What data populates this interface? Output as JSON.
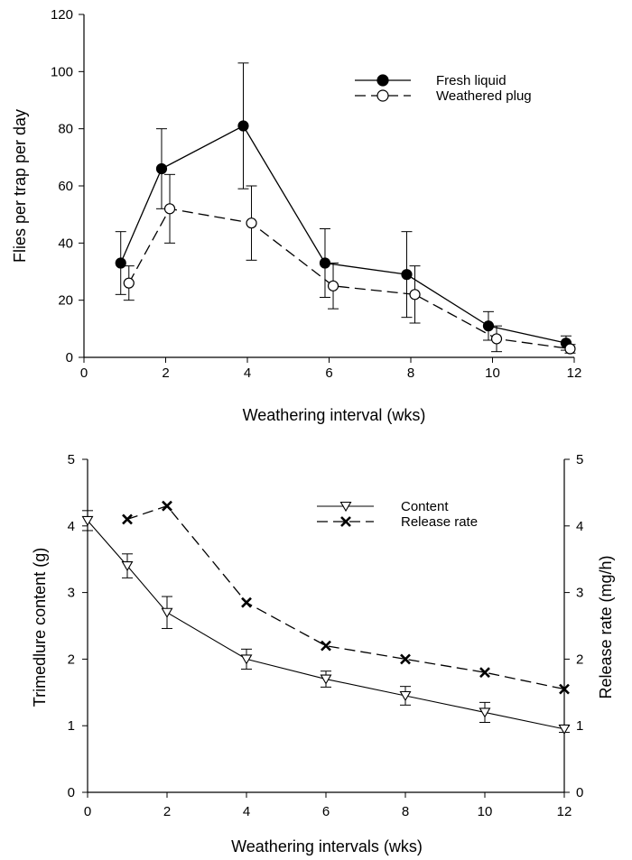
{
  "chart_data": [
    {
      "type": "line",
      "title": "",
      "xlabel": "Weathering interval (wks)",
      "ylabel": "Flies per trap per day",
      "xlim": [
        0,
        12
      ],
      "ylim": [
        0,
        120
      ],
      "xticks": [
        "0",
        "2",
        "4",
        "6",
        "8",
        "10",
        "12"
      ],
      "yticks": [
        "0",
        "20",
        "40",
        "60",
        "80",
        "100",
        "120"
      ],
      "legend_position": "top-right",
      "series": [
        {
          "name": "Fresh liquid",
          "marker": "filled-circle",
          "line_style": "solid",
          "x": [
            0.9,
            1.9,
            3.9,
            5.9,
            7.9,
            9.9,
            11.8
          ],
          "y": [
            33,
            66,
            81,
            33,
            29,
            11,
            5
          ],
          "error": [
            11,
            14,
            22,
            12,
            15,
            5,
            2.5
          ]
        },
        {
          "name": "Weathered plug",
          "marker": "open-circle",
          "line_style": "dashed",
          "x": [
            1.1,
            2.1,
            4.1,
            6.1,
            8.1,
            10.1,
            11.9
          ],
          "y": [
            26,
            52,
            47,
            25,
            22,
            6.5,
            3
          ],
          "error": [
            6,
            12,
            13,
            8,
            10,
            4.5,
            1.5
          ]
        }
      ]
    },
    {
      "type": "line",
      "title": "",
      "xlabel": "Weathering intervals (wks)",
      "ylabel": "Trimedlure content (g)",
      "y2label": "Release rate (mg/h)",
      "xlim": [
        0,
        12
      ],
      "ylim": [
        0,
        5
      ],
      "y2lim": [
        0,
        5
      ],
      "xticks": [
        "0",
        "2",
        "4",
        "6",
        "8",
        "10",
        "12"
      ],
      "yticks": [
        "0",
        "1",
        "2",
        "3",
        "4",
        "5"
      ],
      "y2ticks": [
        "0",
        "1",
        "2",
        "3",
        "4",
        "5"
      ],
      "legend_position": "top-center",
      "series": [
        {
          "name": "Content",
          "axis": "left",
          "marker": "open-down-triangle",
          "line_style": "solid",
          "x": [
            0,
            1,
            2,
            4,
            6,
            8,
            10,
            12
          ],
          "y": [
            4.08,
            3.4,
            2.7,
            2.0,
            1.7,
            1.45,
            1.2,
            0.95
          ],
          "error": [
            0.15,
            0.18,
            0.24,
            0.15,
            0.12,
            0.14,
            0.15,
            0.05
          ]
        },
        {
          "name": "Release rate",
          "axis": "right",
          "marker": "x-cross",
          "line_style": "dashed",
          "x": [
            1,
            2,
            4,
            6,
            8,
            10,
            12
          ],
          "y": [
            4.1,
            4.3,
            2.85,
            2.2,
            2.0,
            1.8,
            1.55
          ]
        }
      ]
    }
  ]
}
